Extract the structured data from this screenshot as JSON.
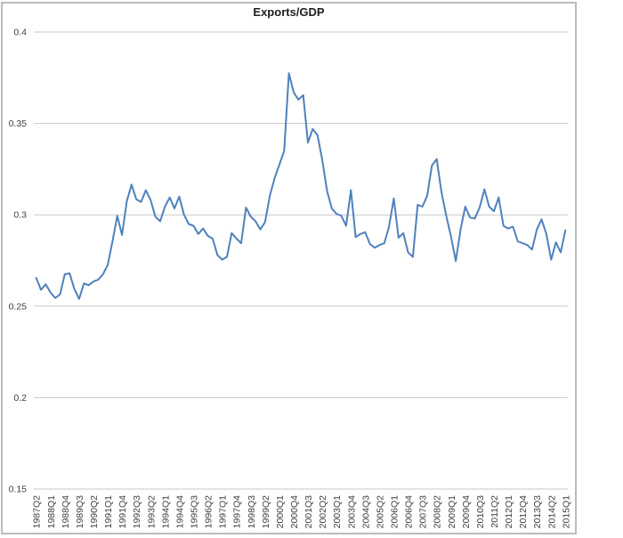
{
  "title": "Exports/GDP",
  "colors": {
    "line": "#4F81BD",
    "gridline": "#c9c9c9",
    "frame_border": "#bcbcbc",
    "tick_text": "#404040",
    "title_text": "#1f1f1f",
    "background": "#ffffff"
  },
  "chart_data": {
    "type": "line",
    "title": "Exports/GDP",
    "xlabel": "",
    "ylabel": "",
    "legend": "none",
    "grid": "horizontal",
    "ylim": [
      0.15,
      0.4
    ],
    "yticks": [
      0.4,
      0.35,
      0.3,
      0.25,
      0.2,
      0.15
    ],
    "ytick_labels": [
      "0.4",
      "0.35",
      "0.3",
      "0.25",
      "0.2",
      "0.15"
    ],
    "xtick_every": 3,
    "xtick_labels_shown": [
      "1987Q2",
      "1988Q1",
      "1988Q4",
      "1989Q3",
      "1990Q2",
      "1991Q1",
      "1991Q4",
      "1992Q3",
      "1993Q2",
      "1994Q1",
      "1994Q4",
      "1995Q3",
      "1996Q2",
      "1997Q1",
      "1997Q4",
      "1998Q3",
      "1999Q2",
      "2000Q1",
      "2000Q4",
      "2001Q3",
      "2002Q2",
      "2003Q1",
      "2003Q4",
      "2004Q3",
      "2005Q2",
      "2006Q1",
      "2006Q4",
      "2007Q3",
      "2008Q2",
      "2009Q1",
      "2009Q4",
      "2010Q3",
      "2011Q2",
      "2012Q1",
      "2012Q4",
      "2013Q3",
      "2014Q2",
      "2015Q1"
    ],
    "x": [
      "1987Q2",
      "1987Q3",
      "1987Q4",
      "1988Q1",
      "1988Q2",
      "1988Q3",
      "1988Q4",
      "1989Q1",
      "1989Q2",
      "1989Q3",
      "1989Q4",
      "1990Q1",
      "1990Q2",
      "1990Q3",
      "1990Q4",
      "1991Q1",
      "1991Q2",
      "1991Q3",
      "1991Q4",
      "1992Q1",
      "1992Q2",
      "1992Q3",
      "1992Q4",
      "1993Q1",
      "1993Q2",
      "1993Q3",
      "1993Q4",
      "1994Q1",
      "1994Q2",
      "1994Q3",
      "1994Q4",
      "1995Q1",
      "1995Q2",
      "1995Q3",
      "1995Q4",
      "1996Q1",
      "1996Q2",
      "1996Q3",
      "1996Q4",
      "1997Q1",
      "1997Q2",
      "1997Q3",
      "1997Q4",
      "1998Q1",
      "1998Q2",
      "1998Q3",
      "1998Q4",
      "1999Q1",
      "1999Q2",
      "1999Q3",
      "1999Q4",
      "2000Q1",
      "2000Q2",
      "2000Q3",
      "2000Q4",
      "2001Q1",
      "2001Q2",
      "2001Q3",
      "2001Q4",
      "2002Q1",
      "2002Q2",
      "2002Q3",
      "2002Q4",
      "2003Q1",
      "2003Q2",
      "2003Q3",
      "2003Q4",
      "2004Q1",
      "2004Q2",
      "2004Q3",
      "2004Q4",
      "2005Q1",
      "2005Q2",
      "2005Q3",
      "2005Q4",
      "2006Q1",
      "2006Q2",
      "2006Q3",
      "2006Q4",
      "2007Q1",
      "2007Q2",
      "2007Q3",
      "2007Q4",
      "2008Q1",
      "2008Q2",
      "2008Q3",
      "2008Q4",
      "2009Q1",
      "2009Q2",
      "2009Q3",
      "2009Q4",
      "2010Q1",
      "2010Q2",
      "2010Q3",
      "2010Q4",
      "2011Q1",
      "2011Q2",
      "2011Q3",
      "2011Q4",
      "2012Q1",
      "2012Q2",
      "2012Q3",
      "2012Q4",
      "2013Q1",
      "2013Q2",
      "2013Q3",
      "2013Q4",
      "2014Q1",
      "2014Q2",
      "2014Q3",
      "2014Q4",
      "2015Q1"
    ],
    "values": [
      0.2655,
      0.259,
      0.262,
      0.2575,
      0.2545,
      0.2565,
      0.2675,
      0.268,
      0.2595,
      0.254,
      0.2625,
      0.2615,
      0.2635,
      0.2645,
      0.2675,
      0.2725,
      0.2855,
      0.2995,
      0.289,
      0.3075,
      0.3165,
      0.3085,
      0.307,
      0.3135,
      0.308,
      0.299,
      0.2965,
      0.3045,
      0.3095,
      0.3035,
      0.31,
      0.3,
      0.295,
      0.294,
      0.2895,
      0.2925,
      0.2885,
      0.287,
      0.278,
      0.2755,
      0.277,
      0.29,
      0.287,
      0.2845,
      0.304,
      0.299,
      0.2965,
      0.292,
      0.296,
      0.3105,
      0.32,
      0.3275,
      0.335,
      0.3775,
      0.367,
      0.363,
      0.3655,
      0.3395,
      0.347,
      0.3435,
      0.33,
      0.313,
      0.3035,
      0.3005,
      0.2995,
      0.294,
      0.3135,
      0.2878,
      0.2895,
      0.2905,
      0.284,
      0.282,
      0.2835,
      0.2845,
      0.2935,
      0.309,
      0.2875,
      0.29,
      0.2795,
      0.277,
      0.3055,
      0.3045,
      0.3105,
      0.327,
      0.3305,
      0.3125,
      0.2995,
      0.288,
      0.2747,
      0.292,
      0.3045,
      0.2985,
      0.298,
      0.304,
      0.314,
      0.3045,
      0.302,
      0.3095,
      0.294,
      0.2925,
      0.2935,
      0.2855,
      0.2845,
      0.2835,
      0.281,
      0.292,
      0.2975,
      0.2895,
      0.2755,
      0.285,
      0.2795,
      0.2915
    ]
  }
}
